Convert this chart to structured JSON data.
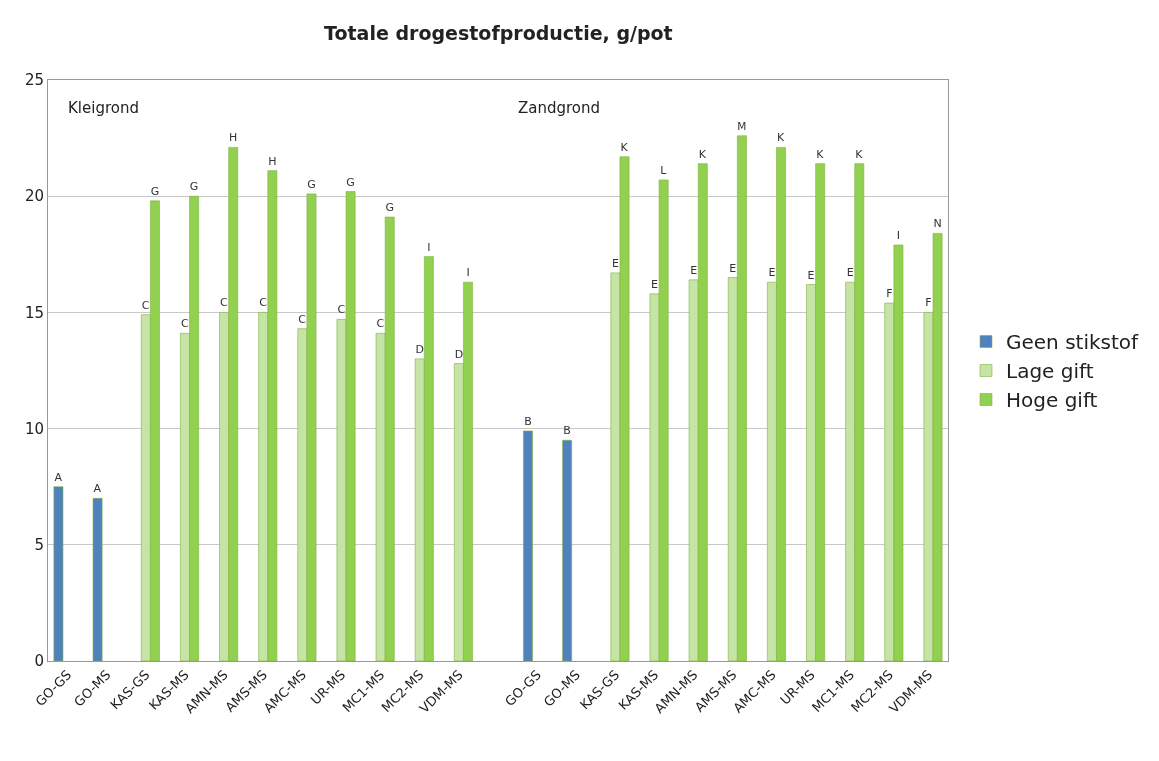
{
  "chart_data": {
    "type": "bar",
    "title": "Totale drogestofproductie, g/pot",
    "categories": [
      "GO-GS",
      "GO-MS",
      "KAS-GS",
      "KAS-MS",
      "AMN-MS",
      "AMS-MS",
      "AMC-MS",
      "UR-MS",
      "MC1-MS",
      "MC2-MS",
      "VDM-MS",
      null,
      "GO-GS",
      "GO-MS",
      "KAS-GS",
      "KAS-MS",
      "AMN-MS",
      "AMS-MS",
      "AMC-MS",
      "UR-MS",
      "MC1-MS",
      "MC2-MS",
      "VDM-MS"
    ],
    "series": [
      {
        "name": "Geen stikstof",
        "color": "#4f81bd",
        "values": [
          7.5,
          7.0,
          null,
          null,
          null,
          null,
          null,
          null,
          null,
          null,
          null,
          null,
          9.9,
          9.5,
          null,
          null,
          null,
          null,
          null,
          null,
          null,
          null,
          null
        ],
        "value_labels": [
          "A",
          "A",
          null,
          null,
          null,
          null,
          null,
          null,
          null,
          null,
          null,
          null,
          "B",
          "B",
          null,
          null,
          null,
          null,
          null,
          null,
          null,
          null,
          null
        ]
      },
      {
        "name": "Lage gift",
        "color": "#c6e4a5",
        "values": [
          null,
          null,
          14.9,
          14.1,
          15.0,
          15.0,
          14.3,
          14.7,
          14.1,
          13.0,
          12.8,
          null,
          null,
          null,
          16.7,
          15.8,
          16.4,
          16.5,
          16.3,
          16.2,
          16.3,
          15.4,
          15.0
        ],
        "value_labels": [
          null,
          null,
          "C",
          "C",
          "C",
          "C",
          "C",
          "C",
          "C",
          "D",
          "D",
          null,
          null,
          null,
          "E",
          "E",
          "E",
          "E",
          "E",
          "E",
          "E",
          "F",
          "F"
        ]
      },
      {
        "name": "Hoge gift",
        "color": "#92d050",
        "values": [
          null,
          null,
          19.8,
          20.0,
          22.1,
          21.1,
          20.1,
          20.2,
          19.1,
          17.4,
          16.3,
          null,
          null,
          null,
          21.7,
          20.7,
          21.4,
          22.6,
          22.1,
          21.4,
          21.4,
          17.9,
          18.4
        ],
        "value_labels": [
          null,
          null,
          "G",
          "G",
          "H",
          "H",
          "G",
          "G",
          "G",
          "I",
          "I",
          null,
          null,
          null,
          "K",
          "L",
          "K",
          "M",
          "K",
          "K",
          "K",
          "I",
          "N"
        ]
      }
    ],
    "ylim": [
      0,
      25
    ],
    "yticks": [
      0,
      5,
      10,
      15,
      20,
      25
    ],
    "grid": "y",
    "legend": "right",
    "annotations": [
      "Kleigrond",
      "Zandgrond"
    ]
  }
}
